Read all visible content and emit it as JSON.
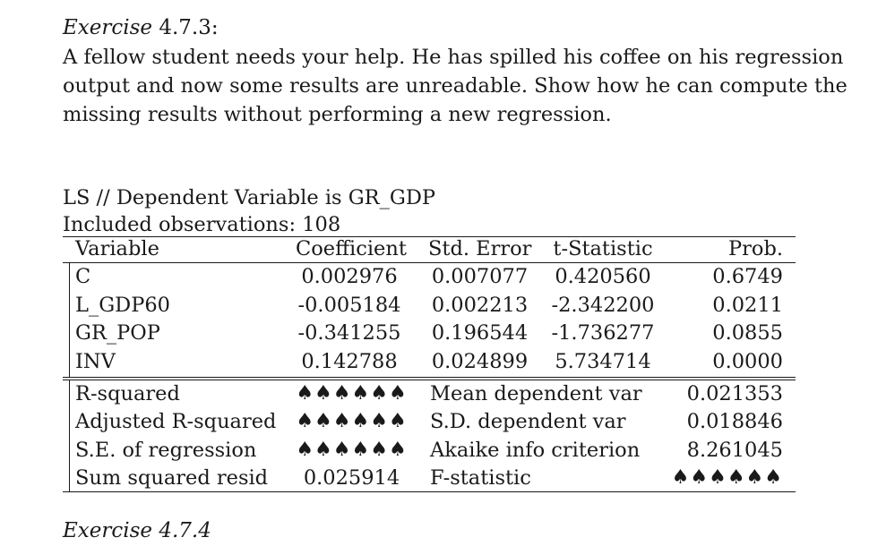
{
  "exercise": {
    "label": "Exercise",
    "number": "4.7.3:",
    "text_lines": [
      "A fellow student needs your help. He has spilled his coffee on his regression",
      "output and now some results are unreadable. Show how he can compute the",
      "missing results without performing a new regression."
    ]
  },
  "regression": {
    "title": "LS  //  Dependent Variable is GR_GDP",
    "observations": "Included observations:  108",
    "headers": [
      "Variable",
      "Coefficient",
      "Std. Error",
      "t-Statistic",
      "Prob."
    ],
    "rows": [
      {
        "variable": "C",
        "coefficient": "0.002976",
        "std_error": "0.007077",
        "t_statistic": "0.420560",
        "prob": "0.6749"
      },
      {
        "variable": "L_GDP60",
        "coefficient": "-0.005184",
        "std_error": "0.002213",
        "t_statistic": "-2.342200",
        "prob": "0.0211"
      },
      {
        "variable": "GR_POP",
        "coefficient": "-0.341255",
        "std_error": "0.196544",
        "t_statistic": "-1.736277",
        "prob": "0.0855"
      },
      {
        "variable": "INV",
        "coefficient": "0.142788",
        "std_error": "0.024899",
        "t_statistic": "5.734714",
        "prob": "0.0000"
      }
    ],
    "stats": [
      {
        "label1": "R-squared",
        "value1": "♠♠♠♠♠♠",
        "label2": "Mean dependent var",
        "value2": "0.021353"
      },
      {
        "label1": "Adjusted R-squared",
        "value1": "♠♠♠♠♠♠",
        "label2": "S.D. dependent var",
        "value2": "0.018846"
      },
      {
        "label1": "S.E. of regression",
        "value1": "♠♠♠♠♠♠",
        "label2": "Akaike info criterion",
        "value2": "8.261045"
      },
      {
        "label1": "Sum squared resid",
        "value1": "0.025914",
        "label2": "F-statistic",
        "value2": "♠♠♠♠♠♠"
      }
    ]
  },
  "next_exercise": {
    "label": "Exercise 4.7.4"
  }
}
